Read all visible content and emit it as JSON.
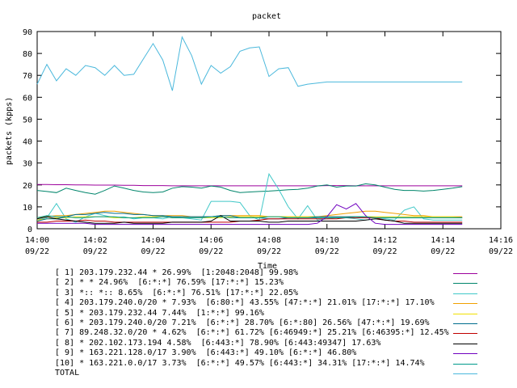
{
  "chart_data": {
    "type": "line",
    "title": "packet",
    "xlabel": "Time",
    "ylabel": "packets (kpps)",
    "ylim": [
      0,
      90
    ],
    "yticks": [
      0,
      10,
      20,
      30,
      40,
      50,
      60,
      70,
      80,
      90
    ],
    "xlim": [
      "14:00",
      "14:16"
    ],
    "xtick_labels": [
      {
        "time": "14:00",
        "date": "09/22"
      },
      {
        "time": "14:02",
        "date": "09/22"
      },
      {
        "time": "14:04",
        "date": "09/22"
      },
      {
        "time": "14:06",
        "date": "09/22"
      },
      {
        "time": "14:08",
        "date": "09/22"
      },
      {
        "time": "14:10",
        "date": "09/22"
      },
      {
        "time": "14:12",
        "date": "09/22"
      },
      {
        "time": "14:14",
        "date": "09/22"
      },
      {
        "time": "14:16",
        "date": "09/22"
      }
    ],
    "grid": false,
    "legend_placement": "bottom",
    "x": [
      "14:00:00",
      "14:00:20",
      "14:00:40",
      "14:01:00",
      "14:01:20",
      "14:01:40",
      "14:02:00",
      "14:02:20",
      "14:02:40",
      "14:03:00",
      "14:03:20",
      "14:03:40",
      "14:04:00",
      "14:04:20",
      "14:04:40",
      "14:05:00",
      "14:05:20",
      "14:05:40",
      "14:06:00",
      "14:06:20",
      "14:06:40",
      "14:07:00",
      "14:07:20",
      "14:07:40",
      "14:08:00",
      "14:08:20",
      "14:08:40",
      "14:09:00",
      "14:09:20",
      "14:09:40",
      "14:10:00",
      "14:10:20",
      "14:10:40",
      "14:11:00",
      "14:11:20",
      "14:11:40",
      "14:12:00",
      "14:12:20",
      "14:12:40",
      "14:13:00",
      "14:13:20",
      "14:13:40",
      "14:14:00",
      "14:14:20",
      "14:14:40"
    ],
    "series": [
      {
        "name": "[ 1] 203.179.232.44 * 26.99%  [1:2048:2048] 99.98%",
        "color": "#9c009c",
        "values": [
          20.2,
          20.2,
          20.1,
          20.1,
          20.0,
          20.0,
          19.9,
          19.9,
          19.9,
          19.8,
          19.8,
          19.7,
          19.7,
          19.7,
          19.6,
          19.6,
          19.6,
          19.6,
          19.6,
          19.6,
          19.6,
          19.6,
          19.6,
          19.6,
          19.6,
          19.6,
          19.6,
          19.6,
          19.6,
          19.6,
          19.7,
          19.7,
          19.7,
          19.6,
          19.6,
          19.6,
          19.6,
          19.6,
          19.6,
          19.6,
          19.6,
          19.6,
          19.6,
          19.6,
          19.6
        ]
      },
      {
        "name": "[ 2] * * 24.96%  [6:*:*] 76.59% [17:*:*] 15.23%",
        "color": "#00856b",
        "values": [
          17.5,
          17.0,
          16.5,
          18.5,
          17.5,
          16.5,
          15.8,
          17.5,
          19.5,
          18.5,
          17.5,
          16.8,
          16.5,
          16.8,
          18.5,
          19.2,
          19.0,
          18.5,
          19.5,
          19.0,
          17.5,
          16.5,
          16.8,
          17.0,
          17.2,
          17.5,
          17.8,
          18.0,
          18.5,
          19.5,
          20.0,
          19.0,
          19.5,
          19.5,
          20.5,
          20.0,
          19.0,
          18.0,
          17.5,
          17.5,
          17.2,
          17.5,
          18.0,
          18.5,
          19.2
        ]
      },
      {
        "name": "[ 3] *:: *:: 8.65%  [6:*:*] 76.51% [17:*:*] 22.05%",
        "color": "#41c8c8",
        "values": [
          4.0,
          5.0,
          11.5,
          4.5,
          3.0,
          5.5,
          7.0,
          6.0,
          5.0,
          5.5,
          4.5,
          5.0,
          5.0,
          4.5,
          5.5,
          5.0,
          4.5,
          4.0,
          12.5,
          12.5,
          12.5,
          12.0,
          6.0,
          4.0,
          25.0,
          18.0,
          10.0,
          4.5,
          10.5,
          4.0,
          4.5,
          5.0,
          5.0,
          4.5,
          4.0,
          4.5,
          4.5,
          4.0,
          8.5,
          10.0,
          4.5,
          4.0,
          4.0,
          4.0,
          4.0
        ]
      },
      {
        "name": "[ 4] 203.179.240.0/20 * 7.93%  [6:80:*] 43.55% [47:*:*] 21.01% [17:*:*] 17.10%",
        "color": "#f0a000",
        "values": [
          5.0,
          5.5,
          6.0,
          6.0,
          6.5,
          7.0,
          7.5,
          8.0,
          8.0,
          7.5,
          7.0,
          6.5,
          6.0,
          6.0,
          6.0,
          6.0,
          5.5,
          5.5,
          5.5,
          6.0,
          6.0,
          6.0,
          6.0,
          6.0,
          5.5,
          5.5,
          5.5,
          5.5,
          5.5,
          5.5,
          6.0,
          6.5,
          7.0,
          7.5,
          8.0,
          8.0,
          7.5,
          7.0,
          6.5,
          6.0,
          6.0,
          5.5,
          5.5,
          5.5,
          5.5
        ]
      },
      {
        "name": "[ 5] * 203.179.232.44 7.44%  [1:*:*] 99.16%",
        "color": "#f0e000",
        "values": [
          4.0,
          4.5,
          5.0,
          5.0,
          5.5,
          5.5,
          5.5,
          5.5,
          5.0,
          5.0,
          5.0,
          5.5,
          5.5,
          5.5,
          5.0,
          5.0,
          5.0,
          5.0,
          5.0,
          5.0,
          5.5,
          5.5,
          5.5,
          5.5,
          5.5,
          5.5,
          5.5,
          5.5,
          5.5,
          5.5,
          5.5,
          5.5,
          5.5,
          5.5,
          5.5,
          5.5,
          5.5,
          5.5,
          5.5,
          5.5,
          5.5,
          5.5,
          5.5,
          5.5,
          5.0
        ]
      },
      {
        "name": "[ 6] * 203.179.240.0/20 7.21%  [6:*:*] 28.70% [6:*:80] 26.56% [47:*:*] 19.69%",
        "color": "#006c8c",
        "values": [
          3.5,
          4.5,
          4.5,
          5.5,
          6.5,
          6.5,
          7.0,
          7.5,
          7.0,
          7.0,
          6.5,
          6.5,
          6.0,
          6.0,
          5.5,
          5.5,
          5.5,
          5.5,
          5.5,
          6.0,
          6.0,
          5.0,
          5.0,
          5.0,
          4.5,
          4.5,
          5.0,
          5.0,
          5.0,
          5.5,
          5.5,
          5.5,
          5.5,
          5.5,
          5.0,
          5.0,
          5.0,
          5.0,
          5.0,
          5.0,
          5.0,
          5.0,
          5.0,
          5.0,
          5.0
        ]
      },
      {
        "name": "[ 7] 89.248.32.0/20 * 4.62%  [6:*:*] 61.72% [6:46949:*] 25.21% [6:46395:*] 12.45%",
        "color": "#c00000",
        "values": [
          3.0,
          3.0,
          3.5,
          3.5,
          3.5,
          4.0,
          3.5,
          3.5,
          3.0,
          3.0,
          3.0,
          3.0,
          3.0,
          3.0,
          3.0,
          3.0,
          3.0,
          3.0,
          3.0,
          3.0,
          3.0,
          3.5,
          3.5,
          4.0,
          4.5,
          4.5,
          4.5,
          4.5,
          4.5,
          4.5,
          4.5,
          4.5,
          5.0,
          5.0,
          5.0,
          5.0,
          4.0,
          3.5,
          3.5,
          3.0,
          3.0,
          3.0,
          3.0,
          3.0,
          3.0
        ]
      },
      {
        "name": "[ 8] * 202.102.173.194 4.58%  [6:443:*] 78.90% [6:443:49347] 17.63%",
        "color": "#000000",
        "values": [
          4.5,
          5.5,
          4.5,
          4.0,
          3.5,
          3.0,
          2.5,
          2.5,
          2.5,
          3.0,
          2.5,
          2.5,
          2.5,
          2.5,
          3.0,
          3.0,
          3.0,
          3.0,
          3.5,
          6.0,
          3.5,
          3.5,
          3.5,
          3.5,
          3.0,
          3.0,
          3.5,
          3.5,
          3.5,
          3.5,
          3.5,
          3.5,
          3.5,
          3.5,
          4.0,
          4.5,
          4.0,
          3.5,
          2.5,
          2.5,
          2.5,
          2.5,
          2.5,
          2.5,
          2.5
        ]
      },
      {
        "name": "[ 9] * 163.221.128.0/17 3.90%  [6:443:*] 49.10% [6:*:*] 46.80%",
        "color": "#7000c0",
        "values": [
          2.5,
          2.5,
          2.5,
          2.5,
          2.5,
          2.5,
          2.0,
          2.0,
          2.0,
          2.0,
          2.0,
          2.0,
          2.0,
          2.0,
          2.0,
          2.0,
          2.0,
          2.0,
          2.0,
          2.0,
          2.0,
          2.0,
          2.0,
          2.0,
          2.0,
          2.0,
          2.0,
          2.0,
          2.0,
          2.5,
          5.5,
          11.0,
          9.0,
          11.5,
          6.0,
          2.5,
          2.0,
          2.0,
          2.0,
          2.0,
          2.0,
          2.0,
          2.0,
          2.0,
          2.0
        ]
      },
      {
        "name": "[10] * 163.221.0.0/17 3.73%  [6:*:*] 49.57% [6:443:*] 34.31% [17:*:*] 14.74%",
        "color": "#009a8a",
        "values": [
          5.0,
          6.0,
          5.5,
          5.5,
          5.0,
          5.0,
          5.5,
          5.5,
          5.5,
          5.0,
          5.0,
          5.0,
          5.0,
          5.5,
          5.0,
          5.0,
          5.0,
          5.0,
          5.5,
          5.5,
          5.0,
          5.0,
          5.0,
          5.0,
          5.5,
          5.5,
          5.0,
          5.0,
          5.0,
          5.0,
          5.0,
          5.0,
          5.0,
          5.5,
          5.5,
          5.0,
          5.0,
          5.0,
          5.0,
          5.0,
          5.0,
          5.0,
          5.0,
          5.0,
          5.0
        ]
      },
      {
        "name": "TOTAL",
        "color": "#4ab8dc",
        "values": [
          66,
          75,
          67.5,
          73,
          70,
          74.5,
          73.5,
          70,
          74.5,
          70,
          70.5,
          77.5,
          84.5,
          77,
          63,
          87.5,
          79,
          66,
          74.5,
          71,
          74,
          81,
          82.5,
          83,
          69.5,
          73,
          73.5,
          65,
          66,
          66.5,
          67,
          67,
          67,
          67,
          67,
          67,
          67,
          67,
          67,
          67,
          67,
          67,
          67,
          67,
          67
        ]
      }
    ]
  }
}
